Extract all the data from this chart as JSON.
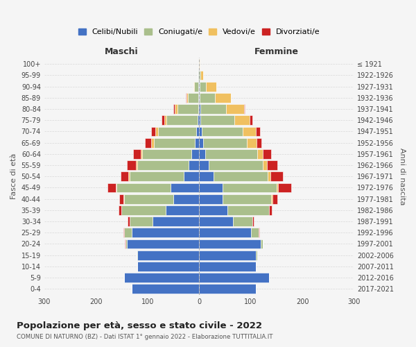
{
  "age_groups": [
    "0-4",
    "5-9",
    "10-14",
    "15-19",
    "20-24",
    "25-29",
    "30-34",
    "35-39",
    "40-44",
    "45-49",
    "50-54",
    "55-59",
    "60-64",
    "65-69",
    "70-74",
    "75-79",
    "80-84",
    "85-89",
    "90-94",
    "95-99",
    "100+"
  ],
  "birth_years": [
    "2017-2021",
    "2012-2016",
    "2007-2011",
    "2002-2006",
    "1997-2001",
    "1992-1996",
    "1987-1991",
    "1982-1986",
    "1977-1981",
    "1972-1976",
    "1967-1971",
    "1962-1966",
    "1957-1961",
    "1952-1956",
    "1947-1951",
    "1942-1946",
    "1937-1941",
    "1932-1936",
    "1927-1931",
    "1922-1926",
    "≤ 1921"
  ],
  "males": {
    "celibi": [
      130,
      145,
      120,
      120,
      140,
      130,
      90,
      65,
      50,
      55,
      30,
      20,
      15,
      8,
      5,
      3,
      2,
      1,
      1,
      1,
      0
    ],
    "coniugati": [
      0,
      0,
      0,
      1,
      3,
      15,
      45,
      85,
      95,
      105,
      105,
      100,
      95,
      80,
      75,
      60,
      40,
      20,
      8,
      2,
      1
    ],
    "vedovi": [
      0,
      0,
      0,
      0,
      0,
      0,
      0,
      1,
      1,
      2,
      2,
      2,
      3,
      5,
      5,
      5,
      5,
      4,
      2,
      0,
      0
    ],
    "divorziati": [
      0,
      0,
      0,
      0,
      1,
      2,
      3,
      5,
      8,
      15,
      15,
      18,
      15,
      12,
      8,
      5,
      3,
      1,
      0,
      0,
      0
    ]
  },
  "females": {
    "nubili": [
      110,
      135,
      110,
      110,
      120,
      100,
      65,
      55,
      45,
      45,
      28,
      18,
      12,
      8,
      5,
      3,
      2,
      1,
      1,
      0,
      0
    ],
    "coniugate": [
      0,
      0,
      0,
      2,
      3,
      15,
      38,
      80,
      95,
      105,
      105,
      105,
      100,
      85,
      80,
      65,
      50,
      30,
      12,
      3,
      0
    ],
    "vedove": [
      0,
      0,
      0,
      0,
      0,
      0,
      0,
      1,
      2,
      3,
      5,
      8,
      12,
      18,
      25,
      30,
      35,
      30,
      20,
      5,
      1
    ],
    "divorziate": [
      0,
      0,
      0,
      0,
      1,
      2,
      3,
      5,
      10,
      25,
      25,
      20,
      15,
      10,
      8,
      5,
      2,
      1,
      0,
      0,
      0
    ]
  },
  "colors": {
    "celibi": "#4472C4",
    "coniugati": "#AABF8C",
    "vedovi": "#F0C060",
    "divorziati": "#CC2222"
  },
  "xlim": 300,
  "title": "Popolazione per età, sesso e stato civile - 2022",
  "subtitle": "COMUNE DI NATURNO (BZ) - Dati ISTAT 1° gennaio 2022 - Elaborazione TUTTITALIA.IT",
  "ylabel_left": "Fasce di età",
  "ylabel_right": "Anni di nascita",
  "xlabel_left": "Maschi",
  "xlabel_right": "Femmine",
  "legend_labels": [
    "Celibi/Nubili",
    "Coniugati/e",
    "Vedovi/e",
    "Divorziati/e"
  ],
  "background_color": "#f5f5f5",
  "grid_color": "#cccccc"
}
